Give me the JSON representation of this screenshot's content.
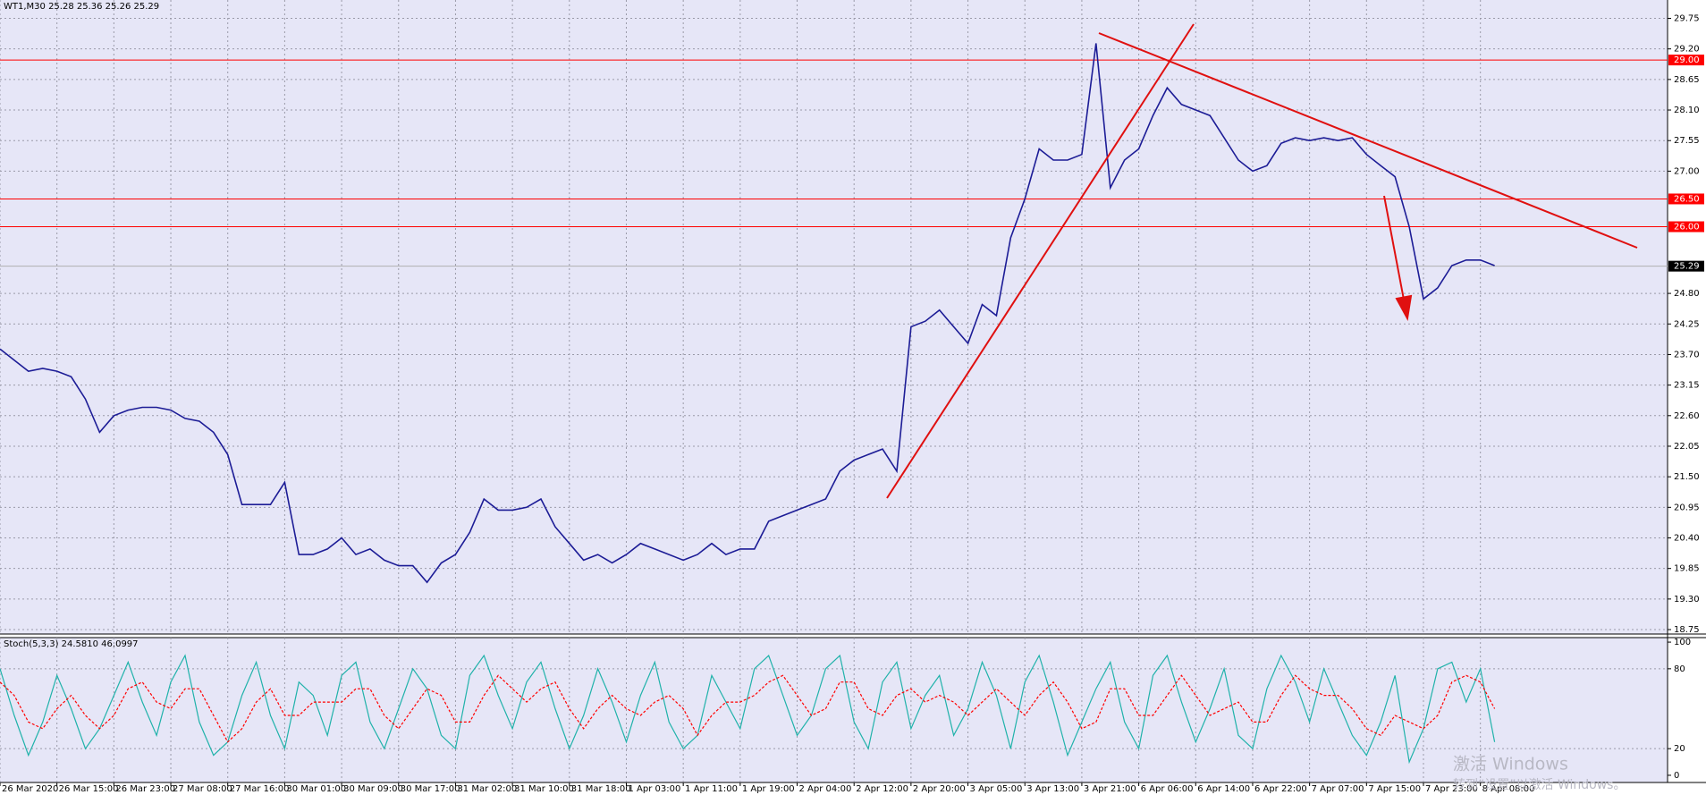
{
  "chart_data": [
    {
      "type": "line",
      "title": "WT1,M30  25.28 25.36 25.26 25.29",
      "categories": [
        "26 Mar 2020",
        null,
        null,
        null,
        "26 Mar 15:00",
        null,
        null,
        null,
        "26 Mar 23:00",
        null,
        null,
        null,
        "27 Mar 08:00",
        null,
        null,
        null,
        "27 Mar 16:00",
        null,
        null,
        null,
        "30 Mar 01:00",
        null,
        null,
        null,
        "30 Mar 09:00",
        null,
        null,
        null,
        "30 Mar 17:00",
        null,
        null,
        null,
        "31 Mar 02:00",
        null,
        null,
        null,
        "31 Mar 10:00",
        null,
        null,
        null,
        "31 Mar 18:00",
        null,
        null,
        null,
        "1 Apr 03:00",
        null,
        null,
        null,
        "1 Apr 11:00",
        null,
        null,
        null,
        "1 Apr 19:00",
        null,
        null,
        null,
        "2 Apr 04:00",
        null,
        null,
        null,
        "2 Apr 12:00",
        null,
        null,
        null,
        "2 Apr 20:00",
        null,
        null,
        null,
        "3 Apr 05:00",
        null,
        null,
        null,
        "3 Apr 13:00",
        null,
        null,
        null,
        "3 Apr 21:00",
        null,
        null,
        null,
        "6 Apr 06:00",
        null,
        null,
        null,
        "6 Apr 14:00",
        null,
        null,
        null,
        "6 Apr 22:00",
        null,
        null,
        null,
        "7 Apr 07:00",
        null,
        null,
        null,
        "7 Apr 15:00",
        null,
        null,
        null,
        "7 Apr 23:00",
        null,
        null,
        null,
        "8 Apr 08:00",
        null
      ],
      "values": [
        23.8,
        23.6,
        23.4,
        23.45,
        23.4,
        23.3,
        22.9,
        22.3,
        22.6,
        22.7,
        22.75,
        22.75,
        22.7,
        22.55,
        22.5,
        22.3,
        21.9,
        21.0,
        21.0,
        21.0,
        21.4,
        20.1,
        20.1,
        20.2,
        20.4,
        20.1,
        20.2,
        20.0,
        19.9,
        19.9,
        19.6,
        19.95,
        20.1,
        20.5,
        21.1,
        20.9,
        20.9,
        20.95,
        21.1,
        20.6,
        20.3,
        20.0,
        20.1,
        19.95,
        20.1,
        20.3,
        20.2,
        20.1,
        20.0,
        20.1,
        20.3,
        20.1,
        20.2,
        20.2,
        20.7,
        20.8,
        20.9,
        21.0,
        21.1,
        21.6,
        21.8,
        21.9,
        22.0,
        21.6,
        24.2,
        24.3,
        24.5,
        24.2,
        23.9,
        24.6,
        24.4,
        25.8,
        26.5,
        27.4,
        27.2,
        27.2,
        27.3,
        29.3,
        26.7,
        27.2,
        27.4,
        28.0,
        28.5,
        28.2,
        28.1,
        28.0,
        27.6,
        27.2,
        27.0,
        27.1,
        27.5,
        27.6,
        27.55,
        27.6,
        27.55,
        27.6,
        27.3,
        27.1,
        26.9,
        26.0,
        24.7,
        24.9,
        25.3,
        25.4,
        25.4,
        25.3
      ],
      "color": "#1c1c96",
      "ylim": [
        18.67,
        30.08
      ],
      "yticks": [
        29.75,
        {
          "value": 29.2,
          "label": "29.20"
        },
        28.65,
        {
          "value": 28.1,
          "label": "28.10"
        },
        27.55,
        {
          "value": 27,
          "label": "27.00"
        },
        {
          "value": 24.8,
          "label": "24.80"
        },
        24.25,
        {
          "value": 23.7,
          "label": "23.70"
        },
        23.15,
        {
          "value": 22.6,
          "label": "22.60"
        },
        22.05,
        {
          "value": 21.5,
          "label": "21.50"
        },
        20.95,
        {
          "value": 20.4,
          "label": "20.40"
        },
        19.85,
        {
          "value": 19.3,
          "label": "19.30"
        },
        18.75
      ],
      "hlines": [
        {
          "value": 29,
          "label": "29.00"
        },
        {
          "value": 26.5,
          "label": "26.50"
        },
        {
          "value": 26,
          "label": "26.00"
        }
      ],
      "hline_color": "#ff0000",
      "last_price": 25.29,
      "grid": true
    },
    {
      "type": "line",
      "title": "Stoch(5,3,3) 24.5810 46.0997",
      "series": [
        {
          "name": "Main",
          "color": "#20b2aa",
          "values": [
            80,
            45,
            15,
            40,
            75,
            50,
            20,
            35,
            60,
            85,
            55,
            30,
            70,
            90,
            40,
            15,
            25,
            60,
            85,
            45,
            20,
            70,
            60,
            30,
            75,
            85,
            40,
            20,
            50,
            80,
            65,
            30,
            20,
            75,
            90,
            60,
            35,
            70,
            85,
            50,
            20,
            45,
            80,
            55,
            25,
            60,
            85,
            40,
            20,
            30,
            75,
            55,
            35,
            80,
            90,
            60,
            30,
            45,
            80,
            90,
            40,
            20,
            70,
            85,
            35,
            60,
            75,
            30,
            50,
            85,
            60,
            20,
            70,
            90,
            55,
            15,
            40,
            65,
            85,
            40,
            20,
            75,
            90,
            55,
            25,
            50,
            80,
            30,
            20,
            65,
            90,
            70,
            40,
            80,
            55,
            30,
            15,
            40,
            75,
            10,
            35,
            80,
            85,
            55,
            80,
            25
          ]
        },
        {
          "name": "Signal",
          "color": "#ff0000",
          "values": [
            70,
            60,
            40,
            35,
            50,
            60,
            45,
            35,
            45,
            65,
            70,
            55,
            50,
            65,
            65,
            45,
            25,
            35,
            55,
            65,
            45,
            45,
            55,
            55,
            55,
            65,
            65,
            45,
            35,
            50,
            65,
            60,
            40,
            40,
            60,
            75,
            65,
            55,
            65,
            70,
            50,
            35,
            50,
            60,
            50,
            45,
            55,
            60,
            50,
            30,
            45,
            55,
            55,
            60,
            70,
            75,
            60,
            45,
            50,
            70,
            70,
            50,
            45,
            60,
            65,
            55,
            60,
            55,
            45,
            55,
            65,
            55,
            45,
            60,
            70,
            55,
            35,
            40,
            65,
            65,
            45,
            45,
            60,
            75,
            60,
            45,
            50,
            55,
            40,
            40,
            60,
            75,
            65,
            60,
            60,
            50,
            35,
            30,
            45,
            40,
            35,
            45,
            70,
            75,
            70,
            50
          ]
        }
      ],
      "ylim": [
        -5.4,
        103.4
      ],
      "yticks": [
        100,
        80,
        20,
        0
      ]
    }
  ],
  "watermark": {
    "line1": "激活 Windows",
    "line2": "转到“设置”以激活 Windows。"
  }
}
